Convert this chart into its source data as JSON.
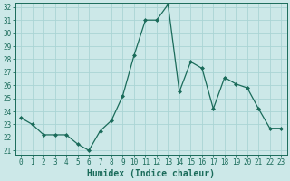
{
  "title": "",
  "xlabel": "Humidex (Indice chaleur)",
  "ylabel": "",
  "x": [
    0,
    1,
    2,
    3,
    4,
    5,
    6,
    7,
    8,
    9,
    10,
    11,
    12,
    13,
    14,
    15,
    16,
    17,
    18,
    19,
    20,
    21,
    22,
    23
  ],
  "y": [
    23.5,
    23.0,
    22.2,
    22.2,
    22.2,
    21.5,
    21.0,
    22.5,
    23.3,
    25.2,
    28.3,
    31.0,
    31.0,
    32.2,
    25.5,
    27.8,
    27.3,
    24.2,
    26.6,
    26.1,
    25.8,
    24.2,
    22.7,
    22.7
  ],
  "line_color": "#1a6b5a",
  "marker": "D",
  "marker_size": 2.0,
  "bg_color": "#cce8e8",
  "grid_color": "#aad4d4",
  "ylim_min": 21,
  "ylim_max": 32,
  "xlim_min": -0.5,
  "xlim_max": 23.5,
  "yticks": [
    21,
    22,
    23,
    24,
    25,
    26,
    27,
    28,
    29,
    30,
    31,
    32
  ],
  "xticks": [
    0,
    1,
    2,
    3,
    4,
    5,
    6,
    7,
    8,
    9,
    10,
    11,
    12,
    13,
    14,
    15,
    16,
    17,
    18,
    19,
    20,
    21,
    22,
    23
  ],
  "tick_fontsize": 5.5,
  "xlabel_fontsize": 7.0,
  "linewidth": 0.9
}
